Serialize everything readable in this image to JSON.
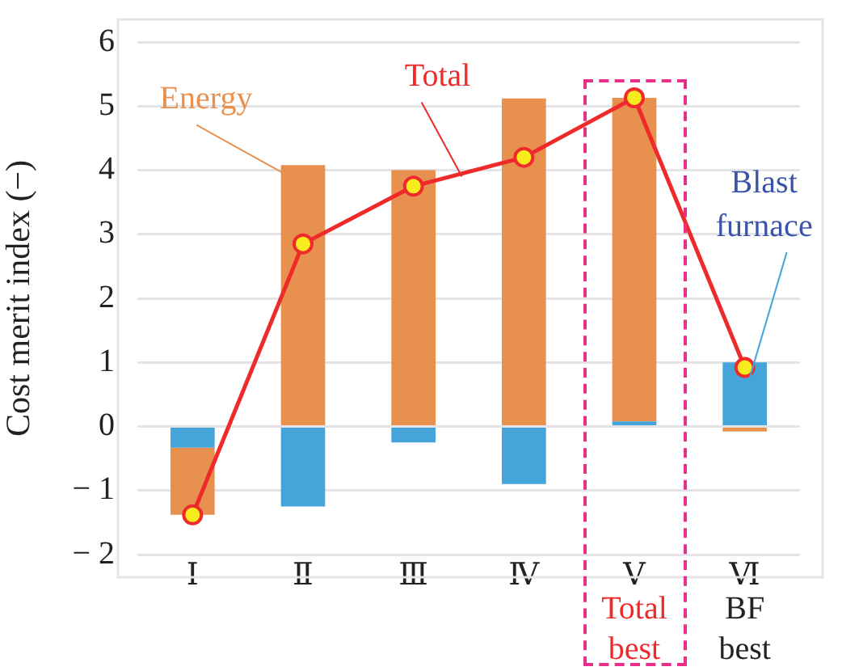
{
  "chart_data": {
    "type": "bar",
    "stacked": true,
    "ylabel": "Cost merit index (−)",
    "categories": [
      "Ⅰ",
      "Ⅱ",
      "Ⅲ",
      "Ⅳ",
      "Ⅴ",
      "Ⅵ"
    ],
    "series": [
      {
        "name": "Blast furnace",
        "color": "#45a5da",
        "values": [
          -0.33,
          -1.25,
          -0.25,
          -0.9,
          0.08,
          1.0
        ]
      },
      {
        "name": "Energy",
        "color": "#e8914f",
        "values": [
          -1.05,
          4.08,
          4.0,
          5.12,
          5.05,
          -0.08
        ]
      },
      {
        "name": "Total",
        "type": "line",
        "color": "#ee2a2a",
        "values": [
          -1.38,
          2.85,
          3.75,
          4.2,
          5.13,
          0.92
        ]
      }
    ],
    "marker": "circle",
    "ylim": [
      -2,
      6
    ],
    "yticks": [
      -2,
      -1,
      0,
      1,
      2,
      3,
      4,
      5,
      6
    ],
    "grid": "y",
    "legend": false,
    "annotations": [
      "Total best",
      "BF best"
    ]
  }
}
